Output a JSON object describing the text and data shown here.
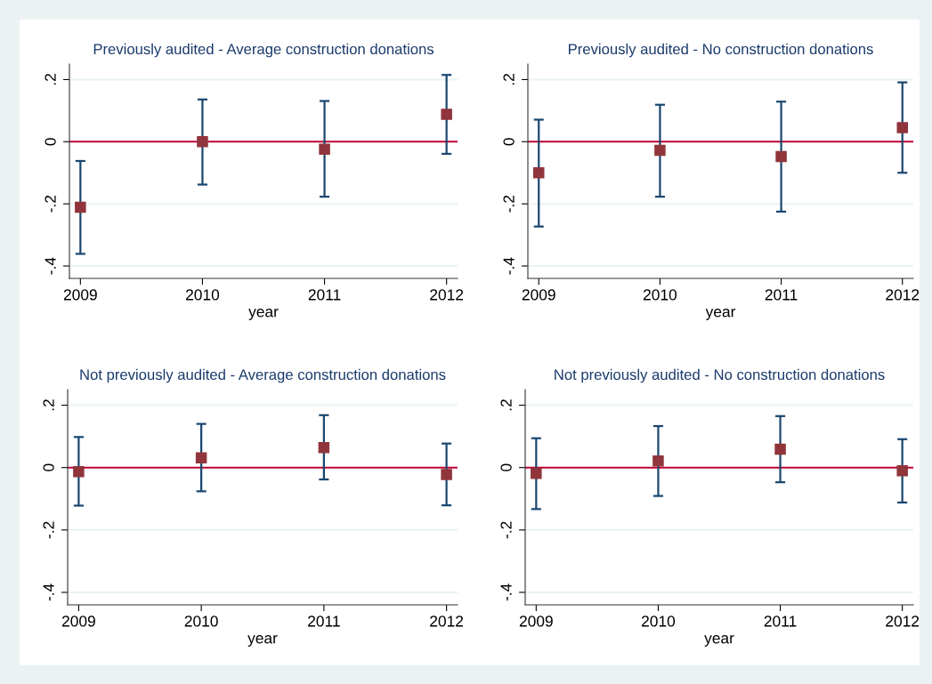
{
  "chart_data": [
    {
      "type": "scatter",
      "title": "Previously audited - Average construction donations",
      "xlabel": "year",
      "x": [
        2009,
        2010,
        2011,
        2012
      ],
      "xlim": [
        2008.91,
        2012.09
      ],
      "xticks": [
        2009,
        2010,
        2011,
        2012
      ],
      "ylim": [
        -0.44,
        0.25
      ],
      "yticks": [
        {
          "value": -0.4,
          "label": "-.4"
        },
        {
          "value": -0.2,
          "label": "-.2"
        },
        {
          "value": 0,
          "label": "0"
        },
        {
          "value": 0.2,
          "label": ".2"
        }
      ],
      "grid": "y",
      "marker": "square",
      "ref_lines": [
        {
          "axis": "y",
          "value": 0,
          "color": "#c10534"
        }
      ],
      "series": [
        {
          "color": "#90353b",
          "values": [
            -0.211,
            0.0,
            -0.024,
            0.088
          ],
          "errors": [
            [
              -0.361,
              -0.062
            ],
            [
              -0.138,
              0.136
            ],
            [
              -0.177,
              0.131
            ],
            [
              -0.039,
              0.215
            ]
          ]
        }
      ]
    },
    {
      "type": "scatter",
      "title": "Previously audited - No construction donations",
      "xlabel": "year",
      "x": [
        2009,
        2010,
        2011,
        2012
      ],
      "xlim": [
        2008.91,
        2012.09
      ],
      "xticks": [
        2009,
        2010,
        2011,
        2012
      ],
      "ylim": [
        -0.44,
        0.25
      ],
      "yticks": [
        {
          "value": -0.4,
          "label": "-.4"
        },
        {
          "value": -0.2,
          "label": "-.2"
        },
        {
          "value": 0,
          "label": "0"
        },
        {
          "value": 0.2,
          "label": ".2"
        }
      ],
      "grid": "y",
      "marker": "square",
      "ref_lines": [
        {
          "axis": "y",
          "value": 0,
          "color": "#c10534"
        }
      ],
      "series": [
        {
          "color": "#90353b",
          "values": [
            -0.1,
            -0.028,
            -0.048,
            0.045
          ],
          "errors": [
            [
              -0.273,
              0.071
            ],
            [
              -0.177,
              0.119
            ],
            [
              -0.225,
              0.129
            ],
            [
              -0.1,
              0.191
            ]
          ]
        }
      ]
    },
    {
      "type": "scatter",
      "title": "Not previously audited - Average construction donations",
      "xlabel": "year",
      "x": [
        2009,
        2010,
        2011,
        2012
      ],
      "xlim": [
        2008.91,
        2012.09
      ],
      "xticks": [
        2009,
        2010,
        2011,
        2012
      ],
      "ylim": [
        -0.44,
        0.25
      ],
      "yticks": [
        {
          "value": -0.4,
          "label": "-.4"
        },
        {
          "value": -0.2,
          "label": "-.2"
        },
        {
          "value": 0,
          "label": "0"
        },
        {
          "value": 0.2,
          "label": ".2"
        }
      ],
      "grid": "y",
      "marker": "square",
      "ref_lines": [
        {
          "axis": "y",
          "value": 0,
          "color": "#c10534"
        }
      ],
      "series": [
        {
          "color": "#90353b",
          "values": [
            -0.013,
            0.031,
            0.064,
            -0.022
          ],
          "errors": [
            [
              -0.122,
              0.098
            ],
            [
              -0.076,
              0.14
            ],
            [
              -0.038,
              0.168
            ],
            [
              -0.121,
              0.077
            ]
          ]
        }
      ]
    },
    {
      "type": "scatter",
      "title": "Not previously audited - No construction donations",
      "xlabel": "year",
      "x": [
        2009,
        2010,
        2011,
        2012
      ],
      "xlim": [
        2008.91,
        2012.09
      ],
      "xticks": [
        2009,
        2010,
        2011,
        2012
      ],
      "ylim": [
        -0.44,
        0.25
      ],
      "yticks": [
        {
          "value": -0.4,
          "label": "-.4"
        },
        {
          "value": -0.2,
          "label": "-.2"
        },
        {
          "value": 0,
          "label": "0"
        },
        {
          "value": 0.2,
          "label": ".2"
        }
      ],
      "grid": "y",
      "marker": "square",
      "ref_lines": [
        {
          "axis": "y",
          "value": 0,
          "color": "#c10534"
        }
      ],
      "series": [
        {
          "color": "#90353b",
          "values": [
            -0.019,
            0.021,
            0.059,
            -0.01
          ],
          "errors": [
            [
              -0.133,
              0.094
            ],
            [
              -0.091,
              0.133
            ],
            [
              -0.047,
              0.165
            ],
            [
              -0.112,
              0.091
            ]
          ]
        }
      ]
    }
  ]
}
